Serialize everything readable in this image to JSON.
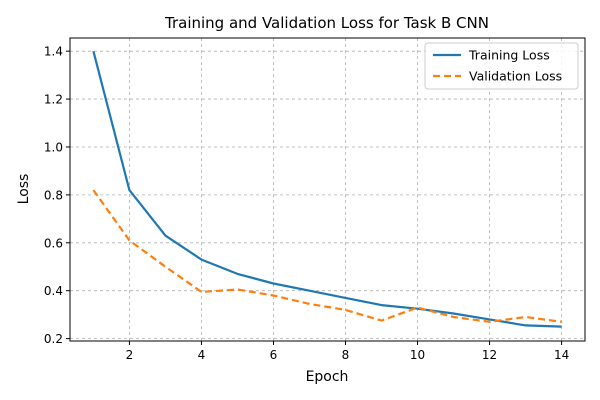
{
  "chart_data": {
    "type": "line",
    "title": "Training and Validation Loss for Task B CNN",
    "xlabel": "Epoch",
    "ylabel": "Loss",
    "xlim": [
      0.35,
      14.65
    ],
    "ylim": [
      0.19,
      1.455
    ],
    "xticks": [
      2,
      4,
      6,
      8,
      10,
      12,
      14
    ],
    "yticks": [
      0.2,
      0.4,
      0.6,
      0.8,
      1.0,
      1.2,
      1.4
    ],
    "grid": true,
    "legend_position": "top-right",
    "x": [
      1,
      2,
      3,
      4,
      5,
      6,
      7,
      8,
      9,
      10,
      11,
      12,
      13,
      14
    ],
    "series": [
      {
        "name": "Training Loss",
        "color": "#1f77b4",
        "style": "solid",
        "values": [
          1.4,
          0.82,
          0.63,
          0.53,
          0.47,
          0.43,
          0.4,
          0.37,
          0.34,
          0.325,
          0.305,
          0.28,
          0.255,
          0.25
        ]
      },
      {
        "name": "Validation Loss",
        "color": "#ff7f0e",
        "style": "dashed",
        "values": [
          0.82,
          0.61,
          0.5,
          0.395,
          0.405,
          0.38,
          0.345,
          0.32,
          0.275,
          0.33,
          0.29,
          0.27,
          0.29,
          0.27
        ]
      }
    ]
  }
}
